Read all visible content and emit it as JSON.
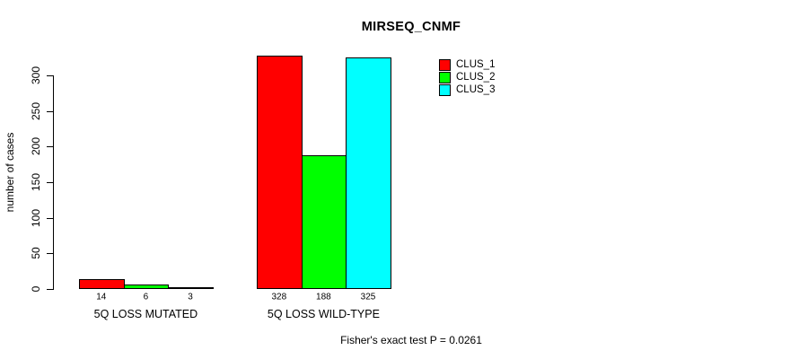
{
  "title": "MIRSEQ_CNMF",
  "chart_data": {
    "type": "bar",
    "title": "MIRSEQ_CNMF",
    "ylabel": "number of cases",
    "categories": [
      "5Q LOSS MUTATED",
      "5Q LOSS WILD-TYPE"
    ],
    "series": [
      {
        "name": "CLUS_1",
        "color": "#ff0000",
        "values": [
          14,
          328
        ]
      },
      {
        "name": "CLUS_2",
        "color": "#00ff00",
        "values": [
          6,
          188
        ]
      },
      {
        "name": "CLUS_3",
        "color": "#00ffff",
        "values": [
          3,
          325
        ]
      }
    ],
    "yticks": [
      0,
      50,
      100,
      150,
      200,
      250,
      300
    ],
    "ylim": [
      0,
      300
    ],
    "grid": false,
    "bar_value_labels": true,
    "legend_position": "top-right",
    "annotation": "Fisher's exact test P = 0.0261",
    "background_color": "#ffffff",
    "axis_color": "#000000"
  }
}
